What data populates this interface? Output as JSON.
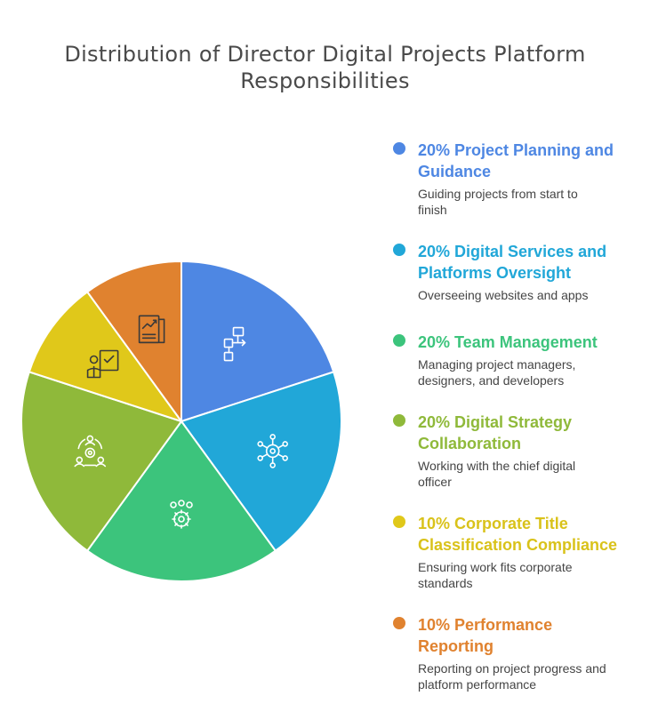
{
  "title_lines": [
    "Distribution of Director Digital Projects Platform",
    "Responsibilities"
  ],
  "chart_data": {
    "type": "pie",
    "title": "Distribution of Director Digital Projects Platform Responsibilities",
    "slices": [
      {
        "percent_label": "20%",
        "value": 20,
        "label": "Project Planning and Guidance",
        "description": "Guiding projects from start to finish",
        "color": "#4e87e3",
        "icon": "flowchart-icon"
      },
      {
        "percent_label": "20%",
        "value": 20,
        "label": "Digital Services and Platforms Oversight",
        "description": "Overseeing websites and apps",
        "color": "#21a7d8",
        "icon": "network-eye-icon"
      },
      {
        "percent_label": "20%",
        "value": 20,
        "label": "Team Management",
        "description": "Managing project managers, designers, and developers",
        "color": "#3cc47c",
        "icon": "team-gear-icon"
      },
      {
        "percent_label": "20%",
        "value": 20,
        "label": "Digital Strategy Collaboration",
        "description": "Working with the chief digital officer",
        "color": "#8fb93a",
        "icon": "people-gear-icon"
      },
      {
        "percent_label": "10%",
        "value": 10,
        "label": "Corporate Title Classification Compliance",
        "description": "Ensuring work fits corporate standards",
        "color": "#e0c81a",
        "icon": "person-checklist-icon"
      },
      {
        "percent_label": "10%",
        "value": 10,
        "label": "Performance Reporting",
        "description": "Reporting on project progress and platform performance",
        "color": "#e0822f",
        "icon": "report-chart-icon"
      }
    ],
    "legend": {
      "placement": "right",
      "entries": [
        {
          "title_lines": [
            "20% Project Planning and",
            "Guidance"
          ],
          "desc_lines": [
            "Guiding projects from start to",
            "finish"
          ],
          "text_color": "#4e87e3"
        },
        {
          "title_lines": [
            "20% Digital Services and",
            "Platforms Oversight"
          ],
          "desc_lines": [
            "Overseeing websites and apps"
          ],
          "text_color": "#21a7d8"
        },
        {
          "title_lines": [
            "20% Team Management"
          ],
          "desc_lines": [
            "Managing project managers,",
            "designers, and developers"
          ],
          "text_color": "#3cc47c"
        },
        {
          "title_lines": [
            "20% Digital Strategy",
            "Collaboration"
          ],
          "desc_lines": [
            "Working with the chief digital",
            "officer"
          ],
          "text_color": "#8fb93a"
        },
        {
          "title_lines": [
            "10% Corporate Title",
            "Classification Compliance"
          ],
          "desc_lines": [
            "Ensuring work fits corporate",
            "standards"
          ],
          "text_color": "#d9c21a"
        },
        {
          "title_lines": [
            "10% Performance",
            "Reporting"
          ],
          "desc_lines": [
            "Reporting on project progress and",
            "platform performance"
          ],
          "text_color": "#e0822f"
        }
      ]
    }
  }
}
